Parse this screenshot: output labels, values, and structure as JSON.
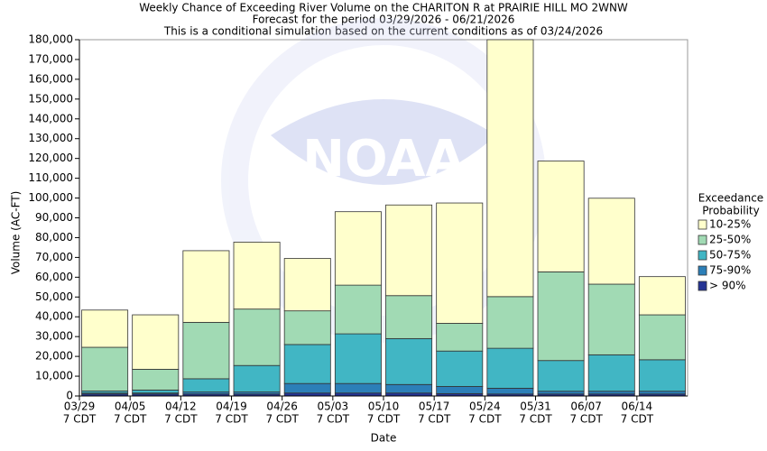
{
  "chart_data": {
    "type": "stacked-bar",
    "title": "Weekly Chance of Exceeding River Volume on the CHARITON R at PRAIRIE HILL MO 2WNW",
    "subtitles": [
      "Forecast for the period 03/29/2026 - 06/21/2026",
      "This is a conditional simulation based on the current conditions as of 03/24/2026"
    ],
    "watermark": "NOAA",
    "x_label": "Date",
    "y_label": "Volume (AC-FT)",
    "categories": [
      "03/29",
      "04/05",
      "04/12",
      "04/19",
      "04/26",
      "05/03",
      "05/10",
      "05/17",
      "05/24",
      "05/31",
      "06/07",
      "06/14"
    ],
    "category_sublabel": "7 CDT",
    "legend_title": [
      "Exceedance",
      "Probability"
    ],
    "series": [
      {
        "name": "> 90%",
        "color": "#253494",
        "values": [
          1000,
          1000,
          1000,
          1000,
          1500,
          1500,
          1500,
          1200,
          1000,
          1000,
          1000,
          1000
        ]
      },
      {
        "name": "75-90%",
        "color": "#2c7fb8",
        "values": [
          500,
          500,
          1000,
          1000,
          4800,
          4800,
          4300,
          3600,
          2900,
          1400,
          1400,
          1400
        ]
      },
      {
        "name": "50-75%",
        "color": "#41b6c4",
        "values": [
          1000,
          1500,
          6700,
          13400,
          19700,
          25100,
          23200,
          17900,
          20200,
          15500,
          18400,
          15900
        ]
      },
      {
        "name": "25-50%",
        "color": "#a1dab4",
        "values": [
          22100,
          10500,
          28500,
          28500,
          17000,
          24600,
          21700,
          14000,
          26100,
          44800,
          35700,
          22700
        ]
      },
      {
        "name": "10-25%",
        "color": "#ffffcc",
        "values": [
          18800,
          27500,
          36200,
          33800,
          26500,
          37100,
          45800,
          60800,
          129800,
          56000,
          43400,
          19300
        ]
      }
    ],
    "ylim": [
      0,
      180000
    ],
    "yticks": [
      0,
      {
        "value": 10000,
        "label": "10,000"
      },
      {
        "value": 20000,
        "label": "20,000"
      },
      {
        "value": 30000,
        "label": "30,000"
      },
      {
        "value": 40000,
        "label": "40,000"
      },
      {
        "value": 50000,
        "label": "50,000"
      },
      {
        "value": 60000,
        "label": "60,000"
      },
      {
        "value": 70000,
        "label": "70,000"
      },
      {
        "value": 80000,
        "label": "80,000"
      },
      {
        "value": 90000,
        "label": "90,000"
      },
      {
        "value": 100000,
        "label": "100,000"
      },
      {
        "value": 110000,
        "label": "110,000"
      },
      {
        "value": 120000,
        "label": "120,000"
      },
      {
        "value": 130000,
        "label": "130,000"
      },
      {
        "value": 140000,
        "label": "140,000"
      },
      {
        "value": 150000,
        "label": "150,000"
      },
      {
        "value": 160000,
        "label": "160,000"
      },
      {
        "value": 170000,
        "label": "170,000"
      },
      {
        "value": 180000,
        "label": "180,000"
      }
    ],
    "legend_position": "right"
  }
}
